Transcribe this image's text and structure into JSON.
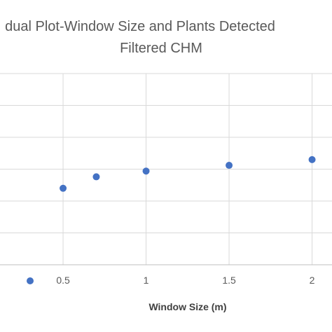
{
  "chart_data": {
    "type": "scatter",
    "title": "dual Plot-Window Size and Plants Detected",
    "subtitle": "Filtered CHM",
    "xlabel": "Window Size (m)",
    "ylabel": "",
    "xlim": [
      0.12,
      2.12
    ],
    "ylim": [
      0,
      1
    ],
    "x_ticks": [
      0.5,
      1,
      1.5,
      2
    ],
    "x_tick_labels": [
      "0.5",
      "1",
      "1.5",
      "2"
    ],
    "grid": true,
    "legend": "bottom-left",
    "series": [
      {
        "color": "#4472C4",
        "points": [
          {
            "x": 0.5,
            "y": 0.4
          },
          {
            "x": 0.7,
            "y": 0.46
          },
          {
            "x": 1.0,
            "y": 0.49
          },
          {
            "x": 1.5,
            "y": 0.52
          },
          {
            "x": 2.0,
            "y": 0.55
          }
        ]
      }
    ]
  }
}
